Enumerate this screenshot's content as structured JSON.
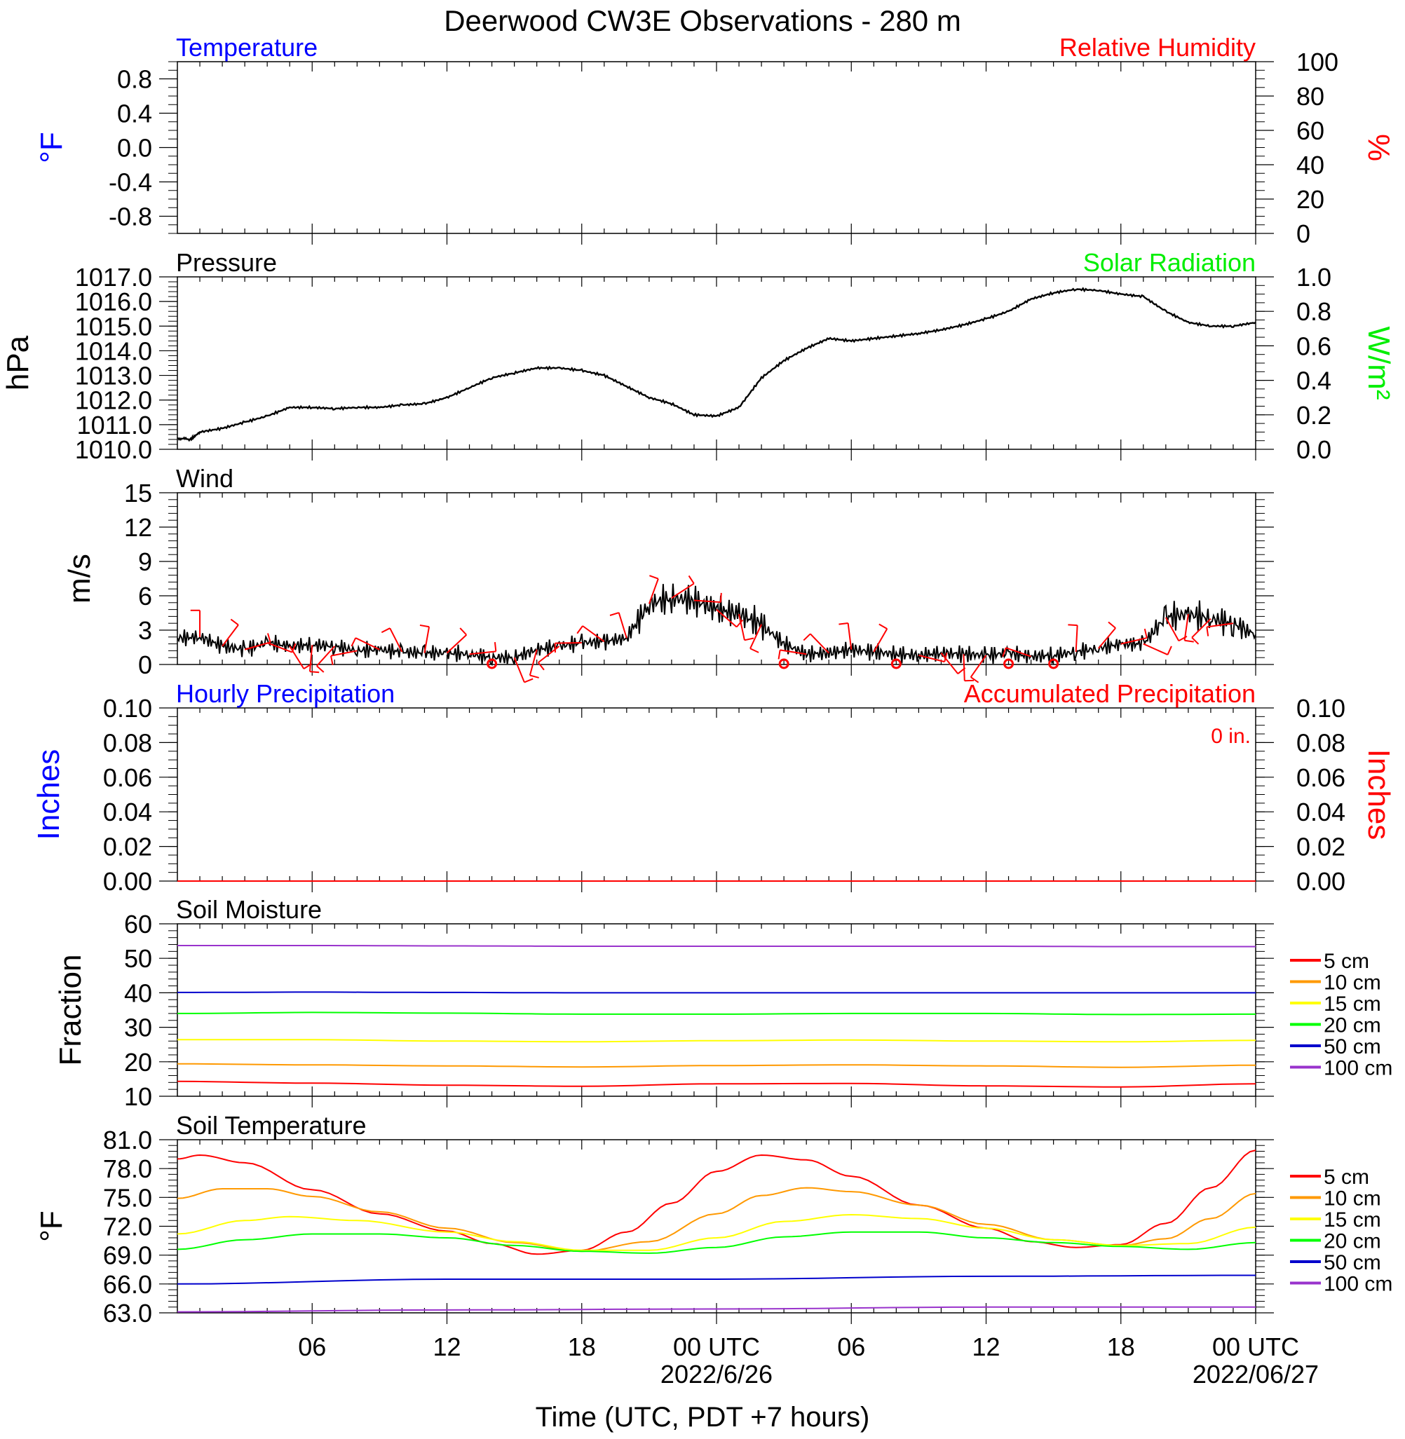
{
  "title": "Deerwood CW3E Observations - 280 m",
  "xaxis": {
    "label": "Time (UTC, PDT +7 hours)",
    "range_hours": [
      0,
      48
    ],
    "major_ticks": [
      {
        "h": 6,
        "label": "06"
      },
      {
        "h": 12,
        "label": "12"
      },
      {
        "h": 18,
        "label": "18"
      },
      {
        "h": 24,
        "label": "00 UTC",
        "sub": "2022/6/26"
      },
      {
        "h": 30,
        "label": "06"
      },
      {
        "h": 36,
        "label": "12"
      },
      {
        "h": 42,
        "label": "18"
      },
      {
        "h": 48,
        "label": "00 UTC",
        "sub": "2022/06/27"
      }
    ]
  },
  "colors": {
    "blue": "#0000ff",
    "red": "#ff0000",
    "green": "#00ee00",
    "orange": "#ff9900",
    "yellow": "#ffff00",
    "soil_green": "#00ff00",
    "navy": "#0000cc",
    "purple": "#9933cc"
  },
  "panels": {
    "temperature": {
      "left_title": "Temperature",
      "right_title": "Relative Humidity",
      "left_unit": "°F",
      "right_unit": "%",
      "left_ticks": [
        "0.8",
        "0.4",
        "0.0",
        "-0.4",
        "-0.8"
      ],
      "right_ticks": [
        "100",
        "80",
        "60",
        "40",
        "20",
        "0"
      ]
    },
    "pressure": {
      "left_title": "Pressure",
      "right_title": "Solar Radiation",
      "left_unit": "hPa",
      "right_unit": "W/m²",
      "left_ticks": [
        "1017.0",
        "1016.0",
        "1015.0",
        "1014.0",
        "1013.0",
        "1012.0",
        "1011.0",
        "1010.0"
      ],
      "right_ticks": [
        "1.0",
        "0.8",
        "0.6",
        "0.4",
        "0.2",
        "0.0"
      ]
    },
    "wind": {
      "left_title": "Wind",
      "left_unit": "m/s",
      "left_ticks": [
        "15",
        "12",
        "9",
        "6",
        "3",
        "0"
      ]
    },
    "precip": {
      "left_title": "Hourly Precipitation",
      "right_title": "Accumulated Precipitation",
      "left_unit": "Inches",
      "right_unit": "Inches",
      "total_label": "0 in.",
      "left_ticks": [
        "0.10",
        "0.08",
        "0.06",
        "0.04",
        "0.02",
        "0.00"
      ],
      "right_ticks": [
        "0.10",
        "0.08",
        "0.06",
        "0.04",
        "0.02",
        "0.00"
      ]
    },
    "soil_moisture": {
      "left_title": "Soil Moisture",
      "left_unit": "Fraction",
      "left_ticks": [
        "60",
        "50",
        "40",
        "30",
        "20",
        "10"
      ],
      "legend": [
        "5 cm",
        "10 cm",
        "15 cm",
        "20 cm",
        "50 cm",
        "100 cm"
      ]
    },
    "soil_temperature": {
      "left_title": "Soil Temperature",
      "left_unit": "°F",
      "left_ticks": [
        "81.0",
        "78.0",
        "75.0",
        "72.0",
        "69.0",
        "66.0",
        "63.0"
      ],
      "legend": [
        "5 cm",
        "10 cm",
        "15 cm",
        "20 cm",
        "50 cm",
        "100 cm"
      ]
    }
  },
  "chart_data": [
    {
      "type": "line",
      "panel": "temperature",
      "title": "Temperature / Relative Humidity",
      "ylim_left": [
        -1,
        1
      ],
      "ylim_right": [
        0,
        100
      ],
      "series": []
    },
    {
      "type": "line",
      "panel": "pressure",
      "ylim": [
        1010,
        1017
      ],
      "ylim_right": [
        0,
        1
      ],
      "series": [
        {
          "name": "Pressure",
          "color": "#000000",
          "x": [
            0,
            0.6,
            1,
            2,
            3,
            4,
            5,
            6,
            7,
            8,
            9,
            10,
            11,
            12,
            13,
            14,
            15,
            16,
            17,
            18,
            19,
            20,
            21,
            22,
            23,
            24,
            25,
            26,
            27,
            28,
            29,
            30,
            31,
            32,
            33,
            34,
            35,
            36,
            37,
            38,
            39,
            40,
            41,
            42,
            43,
            44,
            45,
            46,
            47,
            48
          ],
          "y": [
            1010.45,
            1010.4,
            1010.7,
            1010.85,
            1011.1,
            1011.35,
            1011.7,
            1011.7,
            1011.65,
            1011.7,
            1011.7,
            1011.8,
            1011.85,
            1012.1,
            1012.5,
            1012.9,
            1013.1,
            1013.3,
            1013.3,
            1013.2,
            1013.0,
            1012.55,
            1012.1,
            1011.85,
            1011.4,
            1011.35,
            1011.7,
            1012.9,
            1013.6,
            1014.1,
            1014.5,
            1014.4,
            1014.5,
            1014.6,
            1014.7,
            1014.85,
            1015.05,
            1015.3,
            1015.6,
            1016.1,
            1016.35,
            1016.5,
            1016.45,
            1016.3,
            1016.2,
            1015.6,
            1015.15,
            1015.0,
            1015.0,
            1015.15
          ]
        }
      ]
    },
    {
      "type": "line",
      "panel": "wind",
      "ylim": [
        0,
        15
      ],
      "series": [
        {
          "name": "Wind speed",
          "color": "#000000",
          "x": [
            0,
            1,
            2,
            3,
            4,
            5,
            6,
            7,
            8,
            9,
            10,
            11,
            12,
            13,
            14,
            15,
            16,
            17,
            18,
            19,
            20,
            21,
            22,
            23,
            24,
            25,
            26,
            27,
            28,
            29,
            30,
            31,
            32,
            33,
            34,
            35,
            36,
            37,
            38,
            39,
            40,
            41,
            42,
            43,
            44,
            45,
            46,
            47,
            48
          ],
          "y": [
            2.3,
            2.4,
            1.6,
            1.3,
            1.9,
            1.6,
            1.7,
            1.6,
            1.2,
            1.3,
            1.1,
            1.0,
            1.0,
            0.9,
            0.6,
            0.6,
            1.3,
            1.6,
            1.9,
            2.0,
            2.3,
            5.3,
            5.8,
            5.6,
            4.8,
            4.4,
            3.5,
            1.8,
            0.9,
            1.0,
            1.3,
            1.1,
            0.9,
            0.8,
            1.0,
            0.9,
            0.8,
            1.0,
            0.7,
            0.8,
            1.1,
            1.4,
            1.8,
            1.8,
            4.1,
            4.4,
            4.0,
            3.6,
            2.6
          ]
        },
        {
          "name": "Wind barbs",
          "color": "#ff0000",
          "x": [
            1,
            2,
            3,
            4,
            5,
            6,
            7,
            8,
            9,
            10,
            11,
            12,
            13,
            14,
            15,
            16,
            17,
            18,
            19,
            20,
            21,
            22,
            23,
            24,
            25,
            26,
            27,
            28,
            29,
            30,
            31,
            32,
            33,
            34,
            35,
            36,
            37,
            38,
            39,
            40,
            41,
            42,
            43,
            44,
            45,
            46,
            47
          ],
          "y": [
            2.4,
            1.6,
            1.3,
            1.9,
            1.6,
            1.7,
            1.6,
            1.2,
            1.3,
            1.1,
            1.0,
            1.0,
            0.9,
            0.0,
            0.6,
            1.3,
            1.6,
            1.9,
            2.0,
            2.3,
            5.3,
            5.8,
            5.6,
            4.8,
            4.4,
            3.5,
            0.0,
            0.9,
            1.0,
            1.3,
            1.1,
            0.0,
            0.8,
            1.0,
            0.9,
            0.8,
            0.0,
            0.7,
            0.0,
            1.1,
            1.4,
            1.8,
            1.8,
            4.1,
            4.4,
            4.0,
            3.6
          ]
        }
      ]
    },
    {
      "type": "line",
      "panel": "precip",
      "ylim": [
        0,
        0.1
      ],
      "ylim_right": [
        0,
        0.1
      ],
      "series": [
        {
          "name": "Hourly Precipitation",
          "color": "#0000ff",
          "x": [
            0,
            48
          ],
          "y": [
            0,
            0
          ]
        },
        {
          "name": "Accumulated Precipitation",
          "color": "#ff0000",
          "x": [
            0,
            48
          ],
          "y": [
            0,
            0
          ]
        }
      ]
    },
    {
      "type": "line",
      "panel": "soil_moisture",
      "ylim": [
        10,
        60
      ],
      "series": [
        {
          "name": "5 cm",
          "color": "#ff0000",
          "x": [
            0,
            6,
            12,
            18,
            24,
            30,
            36,
            42,
            48
          ],
          "y": [
            14.3,
            13.8,
            13.2,
            12.9,
            13.6,
            13.7,
            13.0,
            12.7,
            13.6
          ]
        },
        {
          "name": "10 cm",
          "color": "#ff9900",
          "x": [
            0,
            6,
            12,
            18,
            24,
            30,
            36,
            42,
            48
          ],
          "y": [
            19.4,
            19.1,
            18.8,
            18.5,
            18.9,
            19.1,
            18.8,
            18.4,
            19.0
          ]
        },
        {
          "name": "15 cm",
          "color": "#ffff00",
          "x": [
            0,
            6,
            12,
            18,
            24,
            30,
            36,
            42,
            48
          ],
          "y": [
            26.4,
            26.4,
            26.0,
            25.8,
            26.1,
            26.3,
            26.0,
            25.8,
            26.2
          ]
        },
        {
          "name": "20 cm",
          "color": "#00ff00",
          "x": [
            0,
            6,
            12,
            18,
            24,
            30,
            36,
            42,
            48
          ],
          "y": [
            34.0,
            34.3,
            34.1,
            33.8,
            33.8,
            34.0,
            34.0,
            33.7,
            33.8
          ]
        },
        {
          "name": "50 cm",
          "color": "#0000cc",
          "x": [
            0,
            6,
            12,
            18,
            24,
            30,
            36,
            42,
            48
          ],
          "y": [
            40.1,
            40.2,
            40.1,
            40.0,
            40.0,
            40.0,
            40.0,
            40.0,
            40.0
          ]
        },
        {
          "name": "100 cm",
          "color": "#9933cc",
          "x": [
            0,
            6,
            12,
            18,
            24,
            30,
            36,
            42,
            48
          ],
          "y": [
            53.7,
            53.7,
            53.6,
            53.5,
            53.5,
            53.5,
            53.5,
            53.4,
            53.4
          ]
        }
      ]
    },
    {
      "type": "line",
      "panel": "soil_temperature",
      "ylim": [
        63,
        81
      ],
      "series": [
        {
          "name": "5 cm",
          "color": "#ff0000",
          "x": [
            0,
            1,
            3,
            6,
            9,
            12,
            14,
            16,
            18,
            20,
            22,
            24,
            26,
            28,
            30,
            33,
            36,
            38,
            40,
            42,
            44,
            46,
            48
          ],
          "y": [
            79.0,
            79.4,
            78.6,
            75.8,
            73.3,
            71.5,
            70.2,
            69.1,
            69.5,
            71.4,
            74.4,
            77.7,
            79.4,
            78.9,
            77.2,
            74.2,
            71.8,
            70.4,
            69.8,
            70.1,
            72.3,
            76.0,
            79.9
          ]
        },
        {
          "name": "10 cm",
          "color": "#ff9900",
          "x": [
            0,
            2,
            4,
            6,
            9,
            12,
            15,
            18,
            21,
            24,
            26,
            28,
            30,
            33,
            36,
            39,
            42,
            44,
            46,
            48
          ],
          "y": [
            74.9,
            75.9,
            75.9,
            75.1,
            73.5,
            71.8,
            70.3,
            69.4,
            70.4,
            73.3,
            75.2,
            76.0,
            75.6,
            74.2,
            72.2,
            70.6,
            70.0,
            70.7,
            72.8,
            75.4
          ]
        },
        {
          "name": "15 cm",
          "color": "#ffff00",
          "x": [
            0,
            3,
            5,
            8,
            12,
            15,
            18,
            21,
            24,
            27,
            30,
            33,
            36,
            39,
            42,
            45,
            48
          ],
          "y": [
            71.2,
            72.6,
            73.0,
            72.6,
            71.4,
            70.4,
            69.5,
            69.5,
            70.8,
            72.5,
            73.2,
            72.8,
            71.8,
            70.6,
            70.0,
            70.2,
            71.9
          ]
        },
        {
          "name": "20 cm",
          "color": "#00ff00",
          "x": [
            0,
            3,
            6,
            9,
            12,
            15,
            18,
            21,
            24,
            27,
            30,
            33,
            36,
            39,
            42,
            45,
            48
          ],
          "y": [
            69.6,
            70.6,
            71.2,
            71.2,
            70.8,
            70.0,
            69.4,
            69.2,
            69.8,
            70.9,
            71.4,
            71.4,
            70.8,
            70.3,
            69.9,
            69.6,
            70.3
          ]
        },
        {
          "name": "50 cm",
          "color": "#0000cc",
          "x": [
            0,
            12,
            24,
            36,
            48
          ],
          "y": [
            66.0,
            66.5,
            66.5,
            66.8,
            66.9
          ]
        },
        {
          "name": "100 cm",
          "color": "#9933cc",
          "x": [
            0,
            12,
            24,
            36,
            48
          ],
          "y": [
            63.1,
            63.3,
            63.4,
            63.6,
            63.6
          ]
        }
      ]
    }
  ]
}
